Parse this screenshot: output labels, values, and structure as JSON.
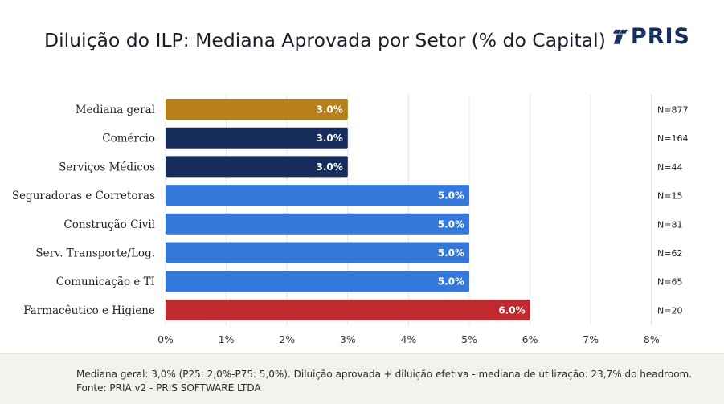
{
  "header": {
    "title": "Diluição do ILP: Mediana Aprovada por Setor (% do Capital)",
    "logo_text": "PRIS"
  },
  "chart_data": {
    "type": "bar",
    "orientation": "horizontal",
    "title": "Diluição do ILP: Mediana Aprovada por Setor (% do Capital)",
    "xlabel": "",
    "ylabel": "",
    "xlim": [
      0,
      8
    ],
    "x_ticks": [
      "0%",
      "1%",
      "2%",
      "3%",
      "4%",
      "5%",
      "6%",
      "7%",
      "8%"
    ],
    "grid": true,
    "categories": [
      "Mediana geral",
      "Comércio",
      "Serviços Médicos",
      "Seguradoras e Corretoras",
      "Construção Civil",
      "Serv. Transporte/Log.",
      "Comunicação e TI",
      "Farmacêutico e Higiene"
    ],
    "values": [
      3.0,
      3.0,
      3.0,
      5.0,
      5.0,
      5.0,
      5.0,
      6.0
    ],
    "value_labels": [
      "3.0%",
      "3.0%",
      "3.0%",
      "5.0%",
      "5.0%",
      "5.0%",
      "5.0%",
      "6.0%"
    ],
    "n_labels": [
      "N=877",
      "N=164",
      "N=44",
      "N=15",
      "N=81",
      "N=62",
      "N=65",
      "N=20"
    ],
    "bar_colors": [
      "#b8801a",
      "#172e5c",
      "#172e5c",
      "#3478db",
      "#3478db",
      "#3478db",
      "#3478db",
      "#c0292e"
    ]
  },
  "colors": {
    "brand_navy": "#172e63",
    "grid": "#e4e4e4",
    "footer_bg": "#f4f2ed"
  },
  "footer": {
    "line1": "Mediana geral: 3,0% (P25: 2,0%-P75: 5,0%). Diluição aprovada + diluição efetiva - mediana de utilização: 23,7% do headroom.",
    "line2": "Fonte: PRIA v2 - PRIS SOFTWARE LTDA"
  }
}
